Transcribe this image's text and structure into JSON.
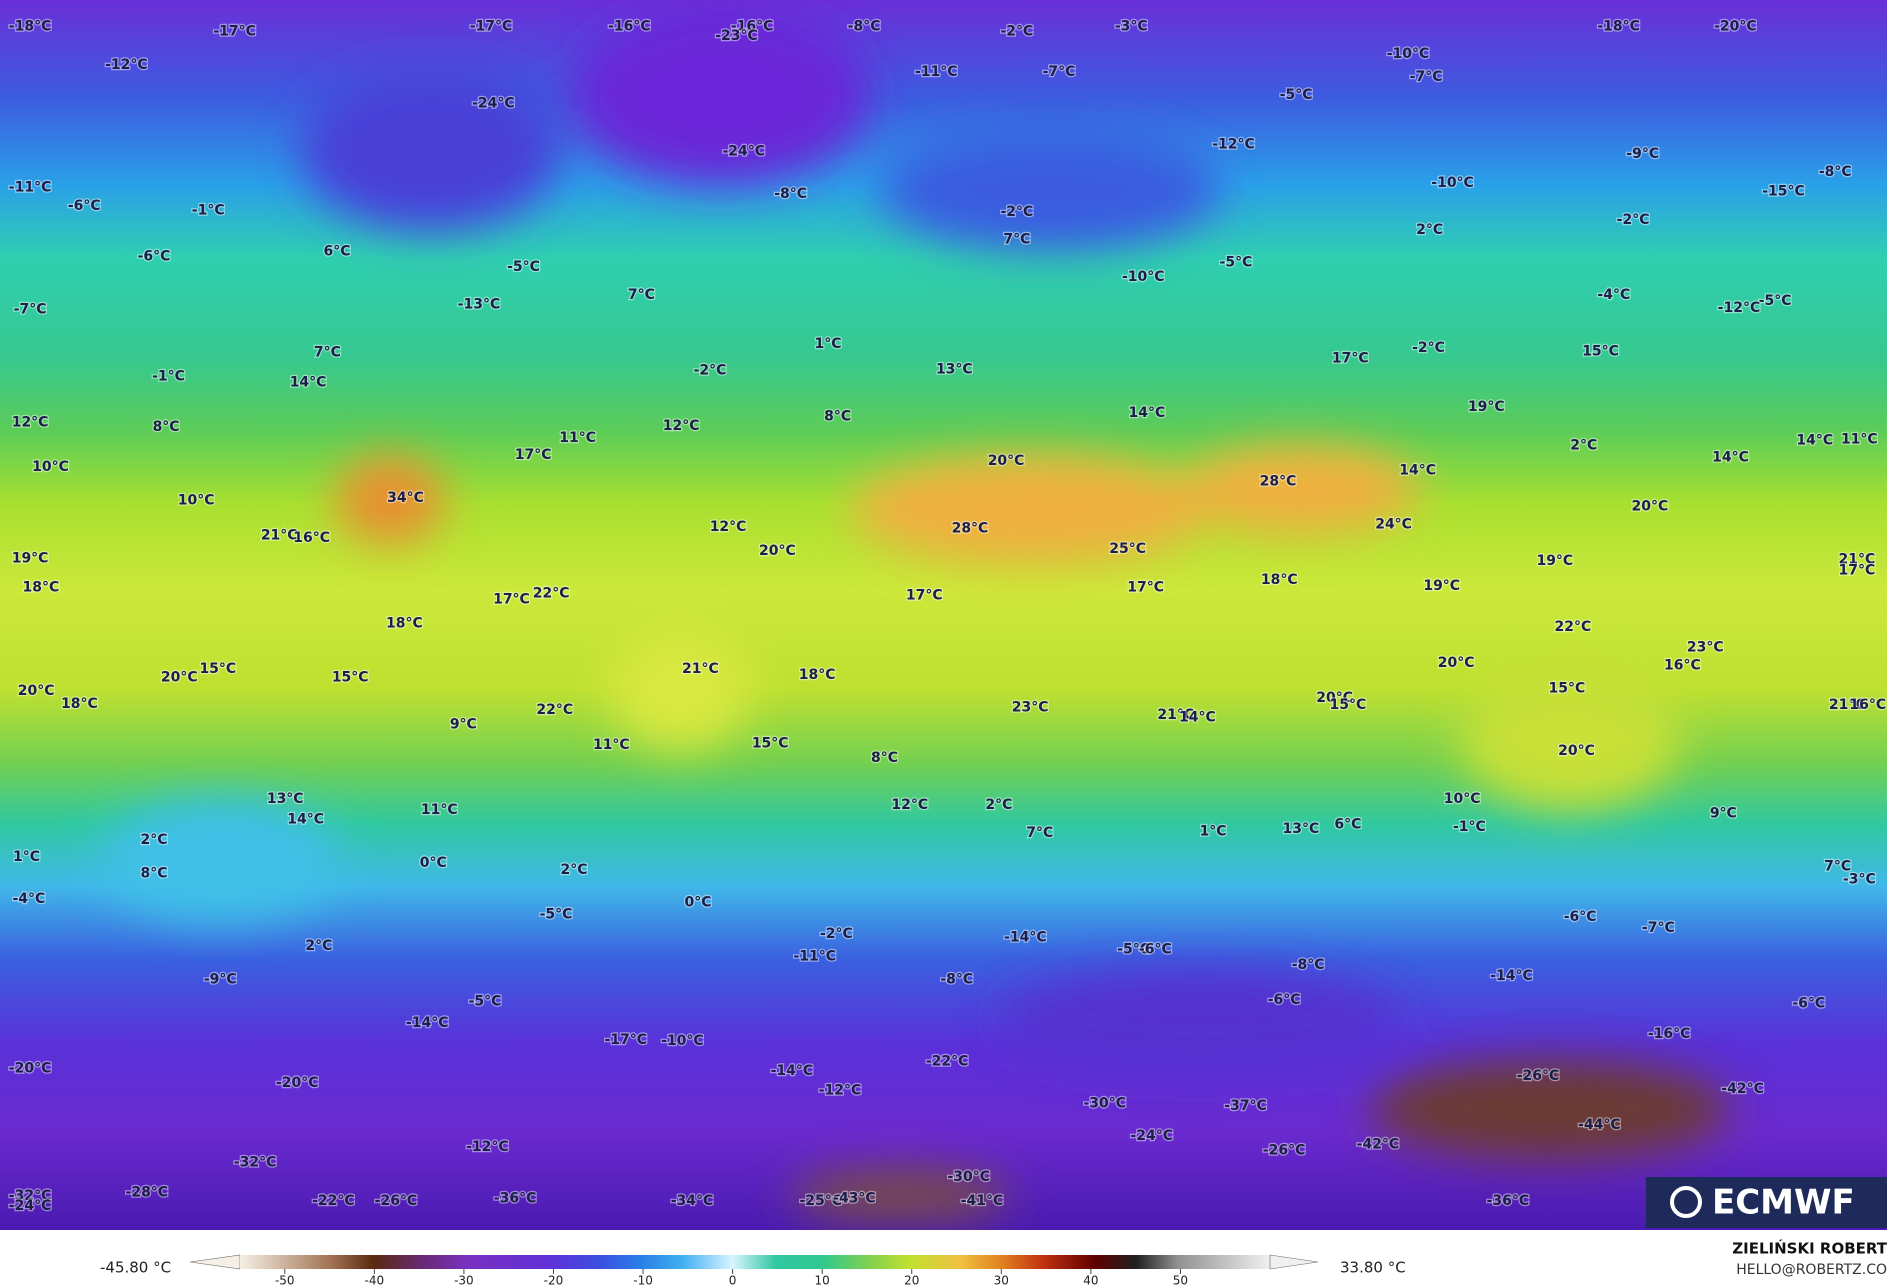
{
  "map": {
    "labels": [
      "-18°C",
      "-17°C",
      "-17°C",
      "-16°C",
      "-16°C",
      "-23°C",
      "-8°C",
      "-2°C",
      "-3°C",
      "-18°C",
      "-20°C",
      "-12°C",
      "-24°C",
      "-11°C",
      "-7°C",
      "-10°C",
      "-7°C",
      "-5°C",
      "-24°C",
      "-12°C",
      "-9°C",
      "-8°C",
      "-11°C",
      "-6°C",
      "-8°C",
      "-10°C",
      "-15°C",
      "-1°C",
      "-2°C",
      "7°C",
      "2°C",
      "-2°C",
      "-6°C",
      "6°C",
      "-5°C",
      "-5°C",
      "-10°C",
      "-4°C",
      "-5°C",
      "-12°C",
      "-7°C",
      "-13°C",
      "7°C",
      "7°C",
      "1°C",
      "13°C",
      "17°C",
      "-2°C",
      "15°C",
      "-1°C",
      "-2°C",
      "14°C",
      "12°C",
      "8°C",
      "8°C",
      "14°C",
      "19°C",
      "11°C",
      "12°C",
      "2°C",
      "14°C",
      "11°C",
      "14°C",
      "10°C",
      "17°C",
      "20°C",
      "14°C",
      "28°C",
      "10°C",
      "34°C",
      "20°C",
      "12°C",
      "28°C",
      "24°C",
      "21°C",
      "16°C",
      "20°C",
      "25°C",
      "19°C",
      "19°C",
      "21°C",
      "17°C",
      "18°C",
      "18°C",
      "17°C",
      "22°C",
      "17°C",
      "17°C",
      "19°C",
      "18°C",
      "22°C",
      "23°C",
      "20°C",
      "21°C",
      "16°C",
      "20°C",
      "15°C",
      "15°C",
      "18°C",
      "15°C",
      "20°C",
      "18°C",
      "20°C",
      "15°C",
      "23°C",
      "21°C",
      "14°C",
      "22°C",
      "9°C",
      "21°C",
      "16°C",
      "11°C",
      "15°C",
      "20°C",
      "8°C",
      "13°C",
      "12°C",
      "2°C",
      "10°C",
      "14°C",
      "11°C",
      "6°C",
      "9°C",
      "7°C",
      "1°C",
      "13°C",
      "-1°C",
      "2°C",
      "1°C",
      "8°C",
      "0°C",
      "7°C",
      "2°C",
      "-3°C",
      "-4°C",
      "0°C",
      "-5°C",
      "-6°C",
      "-7°C",
      "2°C",
      "-2°C",
      "-14°C",
      "-5°C",
      "-6°C",
      "-11°C",
      "-9°C",
      "-8°C",
      "-8°C",
      "-14°C",
      "-5°C",
      "-6°C",
      "-6°C",
      "-14°C",
      "-17°C",
      "-10°C",
      "-16°C",
      "-20°C",
      "-22°C",
      "-14°C",
      "-26°C",
      "-20°C",
      "-12°C",
      "-42°C",
      "-30°C",
      "-37°C",
      "-44°C",
      "-24°C",
      "-12°C",
      "-42°C",
      "-26°C",
      "-32°C",
      "-30°C",
      "-28°C",
      "-25°C",
      "-43°C",
      "-41°C",
      "-22°C",
      "-26°C",
      "-36°C",
      "-34°C",
      "-36°C",
      "-32°C",
      "-24°C"
    ]
  },
  "colorbar": {
    "ticks": [
      -50,
      -40,
      -30,
      -20,
      -10,
      0,
      10,
      20,
      30,
      40,
      50
    ],
    "min_label": "-45.80 °C",
    "max_label": "33.80 °C"
  },
  "logo": "ECMWF",
  "credit": {
    "name": "ZIELIŃSKI ROBERT",
    "contact": "HELLO@ROBERTZ.CO"
  }
}
